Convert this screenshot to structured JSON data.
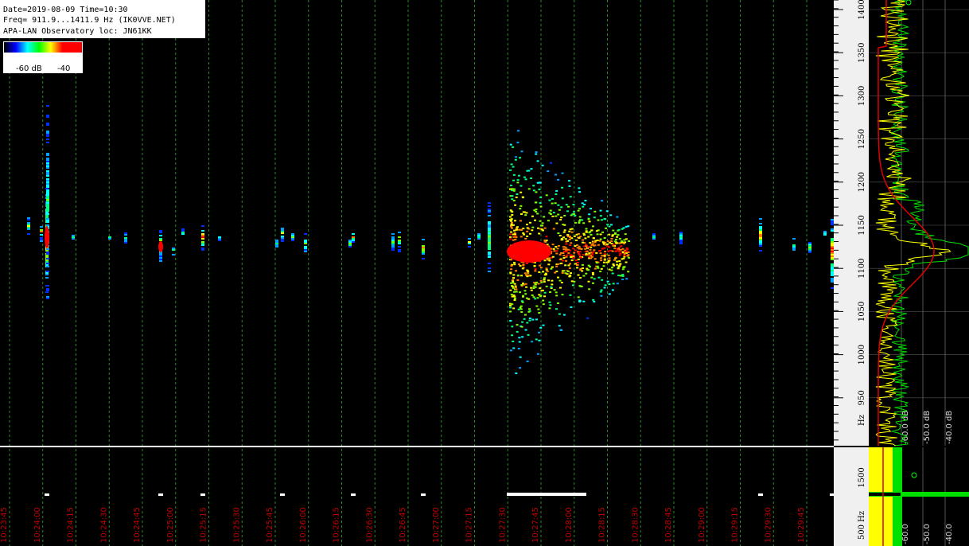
{
  "header": {
    "lines": [
      "Date=2019-08-09 Time=10:30",
      "Freq= 911.9...1411.9 Hz (IK0VVE.NET)",
      "APA-LAN Observatory loc: JN61KK"
    ]
  },
  "colorbar": {
    "labels": [
      "-60 dB",
      "-40"
    ]
  },
  "freq_axis": {
    "labels": [
      "1400",
      "1350",
      "1300",
      "1250",
      "1200",
      "1150",
      "1100",
      "1050",
      "1000",
      "950"
    ],
    "unit": "Hz"
  },
  "db_axis": {
    "labels": [
      "-60.0 dB",
      "-50.0 dB",
      "-40.0 dB"
    ]
  },
  "lower_freq_axis": {
    "labels": [
      "1500",
      "500 Hz"
    ]
  },
  "lower_db_axis": {
    "labels": [
      "-60.0",
      "-50.0",
      "-40.0"
    ]
  },
  "time_axis": {
    "labels": [
      "10:23:45",
      "10:24:00",
      "10:24:15",
      "10:24:30",
      "10:24:45",
      "10:25:00",
      "10:25:15",
      "10:25:30",
      "10:25:45",
      "10:26:00",
      "10:26:15",
      "10:26:30",
      "10:26:45",
      "10:27:00",
      "10:27:15",
      "10:27:30",
      "10:27:45",
      "10:28:00",
      "10:28:15",
      "10:28:30",
      "10:28:45",
      "10:29:00",
      "10:29:15",
      "10:29:30",
      "10:29:45"
    ]
  }
}
